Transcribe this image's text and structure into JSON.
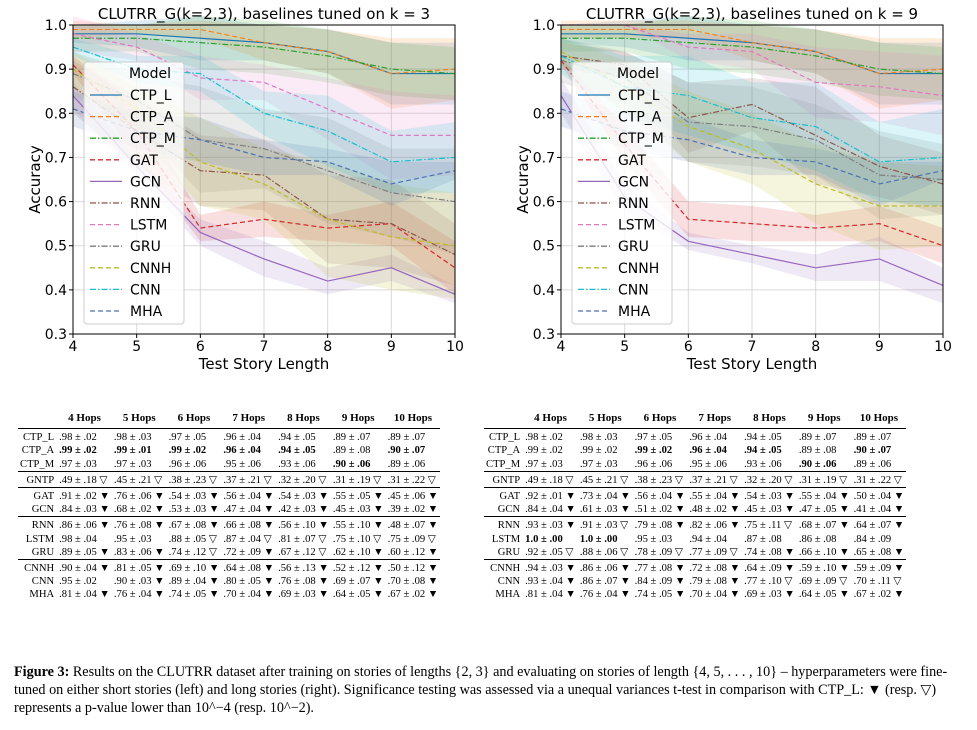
{
  "charts": [
    {
      "type": "line",
      "title": "CLUTRR_G(k=2,3), baselines tuned on k = 3",
      "xlabel": "Test Story Length",
      "ylabel": "Accuracy",
      "xlim": [
        4,
        10
      ],
      "ylim": [
        0.3,
        1.0
      ],
      "xticks": [
        "4",
        "5",
        "6",
        "7",
        "8",
        "9",
        "10"
      ],
      "yticks": [
        "0.3",
        "0.4",
        "0.5",
        "0.6",
        "0.7",
        "0.8",
        "0.9",
        "1.0"
      ],
      "legend_title": "Model",
      "legend_position": "upper-left",
      "x": [
        4,
        5,
        6,
        7,
        8,
        9,
        10
      ],
      "series": [
        {
          "name": "CTP_L",
          "color": "#1f77b4",
          "dash": "solid",
          "values": [
            0.98,
            0.98,
            0.97,
            0.96,
            0.94,
            0.89,
            0.89
          ],
          "err": [
            0.02,
            0.03,
            0.05,
            0.04,
            0.05,
            0.07,
            0.07
          ]
        },
        {
          "name": "CTP_A",
          "color": "#ff7f0e",
          "dash": "dashed",
          "values": [
            0.99,
            0.99,
            0.99,
            0.96,
            0.94,
            0.89,
            0.9
          ],
          "err": [
            0.02,
            0.01,
            0.02,
            0.04,
            0.05,
            0.08,
            0.07
          ]
        },
        {
          "name": "CTP_M",
          "color": "#2ca02c",
          "dash": "dashdot",
          "values": [
            0.97,
            0.97,
            0.96,
            0.95,
            0.93,
            0.9,
            0.89
          ],
          "err": [
            0.03,
            0.03,
            0.06,
            0.06,
            0.06,
            0.06,
            0.06
          ]
        },
        {
          "name": "GAT",
          "color": "#d62728",
          "dash": "dashed",
          "values": [
            0.91,
            0.76,
            0.54,
            0.56,
            0.54,
            0.55,
            0.45
          ],
          "err": [
            0.02,
            0.06,
            0.03,
            0.04,
            0.03,
            0.05,
            0.06
          ]
        },
        {
          "name": "GCN",
          "color": "#9467bd",
          "dash": "solid",
          "values": [
            0.84,
            0.68,
            0.53,
            0.47,
            0.42,
            0.45,
            0.39
          ],
          "err": [
            0.03,
            0.02,
            0.03,
            0.04,
            0.03,
            0.03,
            0.02
          ]
        },
        {
          "name": "RNN",
          "color": "#8c564b",
          "dash": "dashdot",
          "values": [
            0.86,
            0.76,
            0.67,
            0.66,
            0.56,
            0.55,
            0.48
          ],
          "err": [
            0.06,
            0.08,
            0.08,
            0.08,
            0.1,
            0.1,
            0.07
          ]
        },
        {
          "name": "LSTM",
          "color": "#e377c2",
          "dash": "dashed",
          "values": [
            0.98,
            0.95,
            0.88,
            0.87,
            0.81,
            0.75,
            0.75
          ],
          "err": [
            0.04,
            0.03,
            0.05,
            0.04,
            0.07,
            0.1,
            0.09
          ]
        },
        {
          "name": "GRU",
          "color": "#7f7f7f",
          "dash": "dashdot",
          "values": [
            0.89,
            0.83,
            0.74,
            0.72,
            0.67,
            0.62,
            0.6
          ],
          "err": [
            0.05,
            0.06,
            0.12,
            0.09,
            0.12,
            0.1,
            0.12
          ]
        },
        {
          "name": "CNNH",
          "color": "#bcbd22",
          "dash": "dashed",
          "values": [
            0.9,
            0.81,
            0.69,
            0.64,
            0.56,
            0.52,
            0.5
          ],
          "err": [
            0.04,
            0.05,
            0.1,
            0.08,
            0.13,
            0.12,
            0.12
          ]
        },
        {
          "name": "CNN",
          "color": "#17becf",
          "dash": "dashdot",
          "values": [
            0.95,
            0.9,
            0.89,
            0.8,
            0.76,
            0.69,
            0.7
          ],
          "err": [
            0.02,
            0.03,
            0.04,
            0.05,
            0.08,
            0.07,
            0.08
          ]
        },
        {
          "name": "MHA",
          "color": "#4c72b0",
          "dash": "dashed",
          "values": [
            0.81,
            0.76,
            0.74,
            0.7,
            0.69,
            0.64,
            0.67
          ],
          "err": [
            0.04,
            0.04,
            0.05,
            0.04,
            0.03,
            0.05,
            0.02
          ]
        }
      ]
    },
    {
      "type": "line",
      "title": "CLUTRR_G(k=2,3), baselines tuned on k = 9",
      "xlabel": "Test Story Length",
      "ylabel": "Accuracy",
      "xlim": [
        4,
        10
      ],
      "ylim": [
        0.3,
        1.0
      ],
      "xticks": [
        "4",
        "5",
        "6",
        "7",
        "8",
        "9",
        "10"
      ],
      "yticks": [
        "0.3",
        "0.4",
        "0.5",
        "0.6",
        "0.7",
        "0.8",
        "0.9",
        "1.0"
      ],
      "legend_title": "Model",
      "legend_position": "upper-left",
      "x": [
        4,
        5,
        6,
        7,
        8,
        9,
        10
      ],
      "series": [
        {
          "name": "CTP_L",
          "color": "#1f77b4",
          "dash": "solid",
          "values": [
            0.98,
            0.98,
            0.97,
            0.96,
            0.94,
            0.89,
            0.89
          ],
          "err": [
            0.02,
            0.03,
            0.05,
            0.04,
            0.05,
            0.07,
            0.07
          ]
        },
        {
          "name": "CTP_A",
          "color": "#ff7f0e",
          "dash": "dashed",
          "values": [
            0.99,
            0.99,
            0.99,
            0.96,
            0.94,
            0.89,
            0.9
          ],
          "err": [
            0.02,
            0.02,
            0.02,
            0.04,
            0.05,
            0.08,
            0.07
          ]
        },
        {
          "name": "CTP_M",
          "color": "#2ca02c",
          "dash": "dashdot",
          "values": [
            0.97,
            0.97,
            0.96,
            0.95,
            0.93,
            0.9,
            0.89
          ],
          "err": [
            0.03,
            0.03,
            0.06,
            0.06,
            0.06,
            0.06,
            0.06
          ]
        },
        {
          "name": "GAT",
          "color": "#d62728",
          "dash": "dashed",
          "values": [
            0.92,
            0.73,
            0.56,
            0.55,
            0.54,
            0.55,
            0.5
          ],
          "err": [
            0.01,
            0.04,
            0.04,
            0.04,
            0.03,
            0.04,
            0.04
          ]
        },
        {
          "name": "GCN",
          "color": "#9467bd",
          "dash": "solid",
          "values": [
            0.84,
            0.61,
            0.51,
            0.48,
            0.45,
            0.47,
            0.41
          ],
          "err": [
            0.04,
            0.03,
            0.02,
            0.02,
            0.03,
            0.05,
            0.04
          ]
        },
        {
          "name": "RNN",
          "color": "#8c564b",
          "dash": "dashdot",
          "values": [
            0.93,
            0.91,
            0.79,
            0.82,
            0.75,
            0.68,
            0.64
          ],
          "err": [
            0.03,
            0.03,
            0.08,
            0.06,
            0.11,
            0.07,
            0.07
          ]
        },
        {
          "name": "LSTM",
          "color": "#e377c2",
          "dash": "dashed",
          "values": [
            1.0,
            1.0,
            0.95,
            0.94,
            0.87,
            0.86,
            0.84
          ],
          "err": [
            0.0,
            0.0,
            0.03,
            0.04,
            0.08,
            0.08,
            0.09
          ]
        },
        {
          "name": "GRU",
          "color": "#7f7f7f",
          "dash": "dashdot",
          "values": [
            0.92,
            0.88,
            0.78,
            0.77,
            0.74,
            0.66,
            0.65
          ],
          "err": [
            0.05,
            0.06,
            0.09,
            0.09,
            0.08,
            0.1,
            0.08
          ]
        },
        {
          "name": "CNNH",
          "color": "#bcbd22",
          "dash": "dashed",
          "values": [
            0.94,
            0.86,
            0.77,
            0.72,
            0.64,
            0.59,
            0.59
          ],
          "err": [
            0.03,
            0.06,
            0.08,
            0.08,
            0.09,
            0.1,
            0.09
          ]
        },
        {
          "name": "CNN",
          "color": "#17becf",
          "dash": "dashdot",
          "values": [
            0.93,
            0.86,
            0.84,
            0.79,
            0.77,
            0.69,
            0.7
          ],
          "err": [
            0.04,
            0.07,
            0.09,
            0.08,
            0.1,
            0.09,
            0.11
          ]
        },
        {
          "name": "MHA",
          "color": "#4c72b0",
          "dash": "dashed",
          "values": [
            0.81,
            0.76,
            0.74,
            0.7,
            0.69,
            0.64,
            0.67
          ],
          "err": [
            0.04,
            0.04,
            0.05,
            0.04,
            0.03,
            0.05,
            0.02
          ]
        }
      ]
    }
  ],
  "tables": [
    {
      "headers": [
        "",
        "4 Hops",
        "5 Hops",
        "6 Hops",
        "7 Hops",
        "8 Hops",
        "9 Hops",
        "10 Hops"
      ],
      "groups": [
        [
          {
            "label": "CTP_L",
            "cells": [
              ".98 ± .02",
              ".98 ± .03",
              ".97 ± .05",
              ".96 ± .04",
              ".94 ± .05",
              ".89 ± .07",
              ".89 ± .07"
            ],
            "bold": []
          },
          {
            "label": "CTP_A",
            "cells": [
              ".99 ± .02",
              ".99 ± .01",
              ".99 ± .02",
              ".96 ± .04",
              ".94 ± .05",
              ".89 ± .08",
              ".90 ± .07"
            ],
            "bold": [
              0,
              1,
              2,
              3,
              4,
              6
            ]
          },
          {
            "label": "CTP_M",
            "cells": [
              ".97 ± .03",
              ".97 ± .03",
              ".96 ± .06",
              ".95 ± .06",
              ".93 ± .06",
              ".90 ± .06",
              ".89 ± .06"
            ],
            "bold": [
              5
            ]
          }
        ],
        [
          {
            "label": "GNTP",
            "cells": [
              ".49 ± .18 ▽",
              ".45 ± .21 ▽",
              ".38 ± .23 ▽",
              ".37 ± .21 ▽",
              ".32 ± .20 ▽",
              ".31 ± .19 ▽",
              ".31 ± .22 ▽"
            ],
            "bold": []
          }
        ],
        [
          {
            "label": "GAT",
            "cells": [
              ".91 ± .02 ▼",
              ".76 ± .06 ▼",
              ".54 ± .03 ▼",
              ".56 ± .04 ▼",
              ".54 ± .03 ▼",
              ".55 ± .05 ▼",
              ".45 ± .06 ▼"
            ],
            "bold": []
          },
          {
            "label": "GCN",
            "cells": [
              ".84 ± .03 ▼",
              ".68 ± .02 ▼",
              ".53 ± .03 ▼",
              ".47 ± .04 ▼",
              ".42 ± .03 ▼",
              ".45 ± .03 ▼",
              ".39 ± .02 ▼"
            ],
            "bold": []
          }
        ],
        [
          {
            "label": "RNN",
            "cells": [
              ".86 ± .06 ▼",
              ".76 ± .08 ▼",
              ".67 ± .08 ▼",
              ".66 ± .08 ▼",
              ".56 ± .10 ▼",
              ".55 ± .10 ▼",
              ".48 ± .07 ▼"
            ],
            "bold": []
          },
          {
            "label": "LSTM",
            "cells": [
              ".98 ± .04",
              ".95 ± .03",
              ".88 ± .05 ▽",
              ".87 ± .04 ▽",
              ".81 ± .07 ▽",
              ".75 ± .10 ▽",
              ".75 ± .09 ▽"
            ],
            "bold": []
          },
          {
            "label": "GRU",
            "cells": [
              ".89 ± .05 ▼",
              ".83 ± .06 ▼",
              ".74 ± .12 ▽",
              ".72 ± .09 ▼",
              ".67 ± .12 ▽",
              ".62 ± .10 ▼",
              ".60 ± .12 ▼"
            ],
            "bold": []
          }
        ],
        [
          {
            "label": "CNNH",
            "cells": [
              ".90 ± .04 ▼",
              ".81 ± .05 ▼",
              ".69 ± .10 ▼",
              ".64 ± .08 ▼",
              ".56 ± .13 ▼",
              ".52 ± .12 ▼",
              ".50 ± .12 ▼"
            ],
            "bold": []
          },
          {
            "label": "CNN",
            "cells": [
              ".95 ± .02",
              ".90 ± .03 ▼",
              ".89 ± .04 ▼",
              ".80 ± .05 ▼",
              ".76 ± .08 ▼",
              ".69 ± .07 ▼",
              ".70 ± .08 ▼"
            ],
            "bold": []
          },
          {
            "label": "MHA",
            "cells": [
              ".81 ± .04 ▼",
              ".76 ± .04 ▼",
              ".74 ± .05 ▼",
              ".70 ± .04 ▼",
              ".69 ± .03 ▼",
              ".64 ± .05 ▼",
              ".67 ± .02 ▼"
            ],
            "bold": []
          }
        ]
      ]
    },
    {
      "headers": [
        "",
        "4 Hops",
        "5 Hops",
        "6 Hops",
        "7 Hops",
        "8 Hops",
        "9 Hops",
        "10 Hops"
      ],
      "groups": [
        [
          {
            "label": "CTP_L",
            "cells": [
              ".98 ± .02",
              ".98 ± .03",
              ".97 ± .05",
              ".96 ± .04",
              ".94 ± .05",
              ".89 ± .07",
              ".89 ± .07"
            ],
            "bold": []
          },
          {
            "label": "CTP_A",
            "cells": [
              ".99 ± .02",
              ".99 ± .02",
              ".99 ± .02",
              ".96 ± .04",
              ".94 ± .05",
              ".89 ± .08",
              ".90 ± .07"
            ],
            "bold": [
              2,
              3,
              4,
              6
            ]
          },
          {
            "label": "CTP_M",
            "cells": [
              ".97 ± .03",
              ".97 ± .03",
              ".96 ± .06",
              ".95 ± .06",
              ".93 ± .06",
              ".90 ± .06",
              ".89 ± .06"
            ],
            "bold": [
              5
            ]
          }
        ],
        [
          {
            "label": "GNTP",
            "cells": [
              ".49 ± .18 ▽",
              ".45 ± .21 ▽",
              ".38 ± .23 ▽",
              ".37 ± .21 ▽",
              ".32 ± .20 ▽",
              ".31 ± .19 ▽",
              ".31 ± .22 ▽"
            ],
            "bold": []
          }
        ],
        [
          {
            "label": "GAT",
            "cells": [
              ".92 ± .01 ▼",
              ".73 ± .04 ▼",
              ".56 ± .04 ▼",
              ".55 ± .04 ▼",
              ".54 ± .03 ▼",
              ".55 ± .04 ▼",
              ".50 ± .04 ▼"
            ],
            "bold": []
          },
          {
            "label": "GCN",
            "cells": [
              ".84 ± .04 ▼",
              ".61 ± .03 ▼",
              ".51 ± .02 ▼",
              ".48 ± .02 ▼",
              ".45 ± .03 ▼",
              ".47 ± .05 ▼",
              ".41 ± .04 ▼"
            ],
            "bold": []
          }
        ],
        [
          {
            "label": "RNN",
            "cells": [
              ".93 ± .03 ▼",
              ".91 ± .03 ▽",
              ".79 ± .08 ▼",
              ".82 ± .06 ▼",
              ".75 ± .11 ▽",
              ".68 ± .07 ▼",
              ".64 ± .07 ▼"
            ],
            "bold": []
          },
          {
            "label": "LSTM",
            "cells": [
              "1.0 ± .00",
              "1.0 ± .00",
              ".95 ± .03",
              ".94 ± .04",
              ".87 ± .08",
              ".86 ± .08",
              ".84 ± .09"
            ],
            "bold": [
              0,
              1
            ]
          },
          {
            "label": "GRU",
            "cells": [
              ".92 ± .05 ▽",
              ".88 ± .06 ▽",
              ".78 ± .09 ▽",
              ".77 ± .09 ▽",
              ".74 ± .08 ▼",
              ".66 ± .10 ▼",
              ".65 ± .08 ▼"
            ],
            "bold": []
          }
        ],
        [
          {
            "label": "CNNH",
            "cells": [
              ".94 ± .03 ▼",
              ".86 ± .06 ▼",
              ".77 ± .08 ▼",
              ".72 ± .08 ▼",
              ".64 ± .09 ▼",
              ".59 ± .10 ▼",
              ".59 ± .09 ▼"
            ],
            "bold": []
          },
          {
            "label": "CNN",
            "cells": [
              ".93 ± .04 ▼",
              ".86 ± .07 ▼",
              ".84 ± .09 ▼",
              ".79 ± .08 ▼",
              ".77 ± .10 ▽",
              ".69 ± .09 ▽",
              ".70 ± .11 ▽"
            ],
            "bold": []
          },
          {
            "label": "MHA",
            "cells": [
              ".81 ± .04 ▼",
              ".76 ± .04 ▼",
              ".74 ± .05 ▼",
              ".70 ± .04 ▼",
              ".69 ± .03 ▼",
              ".64 ± .05 ▼",
              ".67 ± .02 ▼"
            ],
            "bold": []
          }
        ]
      ]
    }
  ],
  "caption": {
    "label": "Figure 3:",
    "text": "Results on the CLUTRR dataset after training on stories of lengths {2, 3} and evaluating on stories of length {4, 5, . . . , 10} – hyperparameters were fine-tuned on either short stories (left) and long stories (right). Significance testing was assessed via a unequal variances t-test in comparison with CTP_L: ▼ (resp. ▽) represents a p-value lower than 10^−4 (resp. 10^−2)."
  }
}
